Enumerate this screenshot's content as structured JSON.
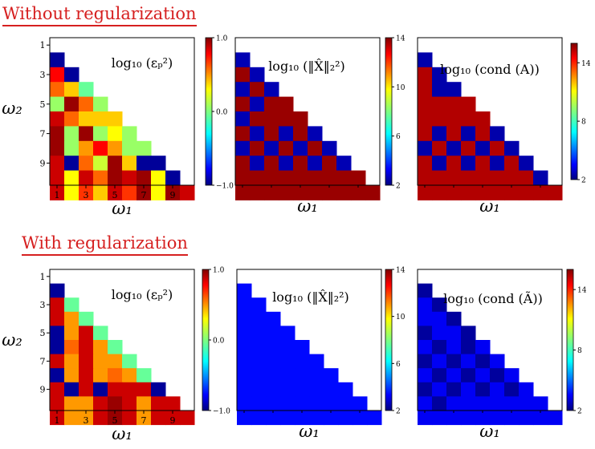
{
  "sections": [
    {
      "title": "Without regularization"
    },
    {
      "title": "With regularization"
    }
  ],
  "colormap": "jet",
  "chart_data": [
    {
      "type": "heatmap",
      "section": "Without regularization",
      "title": "log₁₀ (εₚ²)",
      "xlabel": "ω₁",
      "ylabel": "ω₂",
      "xticks": [
        "1",
        "3",
        "5",
        "7",
        "9"
      ],
      "yticks": [
        "1",
        "3",
        "5",
        "7",
        "9"
      ],
      "colorbar": {
        "min": -1.0,
        "max": 1.0,
        "ticks": [
          "−1.0",
          "0.0",
          "1.0"
        ]
      },
      "grid": [
        [],
        [
          -0.95
        ],
        [
          0.75,
          -0.95
        ],
        [
          0.55,
          0.35,
          -0.05
        ],
        [
          0.05,
          0.95,
          0.55,
          0.05
        ],
        [
          0.85,
          0.55,
          0.35,
          0.35,
          0.35
        ],
        [
          0.95,
          0.05,
          0.95,
          0.05,
          0.25,
          0.05
        ],
        [
          0.95,
          0.05,
          0.45,
          0.75,
          0.45,
          0.05,
          0.05
        ],
        [
          0.85,
          -0.95,
          0.55,
          0.15,
          0.95,
          0.35,
          -0.95,
          -0.95
        ],
        [
          0.85,
          0.25,
          0.85,
          0.55,
          0.95,
          0.85,
          0.95,
          0.25,
          -0.95
        ],
        [
          0.85,
          0.25,
          0.65,
          0.35,
          0.85,
          0.65,
          0.95,
          0.25,
          0.95,
          0.85
        ]
      ]
    },
    {
      "type": "heatmap",
      "section": "Without regularization",
      "title": "log₁₀ (‖X̂‖₂²)",
      "xlabel": "ω₁",
      "ylabel": "",
      "xticks": [],
      "yticks": [],
      "colorbar": {
        "min": 2,
        "max": 14,
        "ticks": [
          "2",
          "6",
          "10",
          "14"
        ]
      },
      "grid": [
        [],
        [
          2.6
        ],
        [
          13.7,
          2.6
        ],
        [
          2.6,
          13.7,
          2.6
        ],
        [
          13.7,
          2.6,
          13.7,
          13.7
        ],
        [
          2.6,
          13.7,
          13.7,
          13.7,
          13.7
        ],
        [
          13.7,
          2.6,
          13.7,
          2.6,
          13.7,
          2.6
        ],
        [
          2.6,
          13.7,
          2.6,
          13.7,
          2.6,
          13.7,
          2.6
        ],
        [
          13.7,
          2.6,
          13.7,
          2.6,
          13.7,
          2.6,
          13.7,
          2.6
        ],
        [
          13.7,
          13.7,
          13.7,
          13.7,
          13.7,
          13.7,
          13.7,
          13.7,
          13.7
        ],
        [
          13.7,
          13.7,
          13.7,
          13.7,
          13.7,
          13.7,
          13.7,
          13.7,
          13.7,
          13.7
        ]
      ]
    },
    {
      "type": "heatmap",
      "section": "Without regularization",
      "title": "log₁₀ (cond (A))",
      "xlabel": "ω₁",
      "ylabel": "",
      "xticks": [],
      "yticks": [],
      "colorbar": {
        "min": 2,
        "max": 16,
        "ticks": [
          "2",
          "8",
          "14"
        ]
      },
      "grid": [
        [],
        [
          2.6
        ],
        [
          15.3,
          2.6
        ],
        [
          15.3,
          2.6,
          2.6
        ],
        [
          15.3,
          15.3,
          15.3,
          15.3
        ],
        [
          15.3,
          15.3,
          15.3,
          15.3,
          15.3
        ],
        [
          15.3,
          2.6,
          15.3,
          2.6,
          15.3,
          2.6
        ],
        [
          2.6,
          15.3,
          2.6,
          15.3,
          2.6,
          15.3,
          2.6
        ],
        [
          15.3,
          2.6,
          15.3,
          2.6,
          15.3,
          2.6,
          15.3,
          2.6
        ],
        [
          15.3,
          15.3,
          15.3,
          15.3,
          15.3,
          15.3,
          15.3,
          15.3,
          2.6
        ],
        [
          15.3,
          15.3,
          15.3,
          15.3,
          15.3,
          15.3,
          15.3,
          15.3,
          15.3,
          15.3
        ]
      ]
    },
    {
      "type": "heatmap",
      "section": "With regularization",
      "title": "log₁₀ (εₚ²)",
      "xlabel": "ω₁",
      "ylabel": "ω₂",
      "xticks": [
        "1",
        "3",
        "5",
        "7",
        "9"
      ],
      "yticks": [
        "1",
        "3",
        "5",
        "7",
        "9"
      ],
      "colorbar": {
        "min": -1.0,
        "max": 1.0,
        "ticks": [
          "−1.0",
          "0.0",
          "1.0"
        ]
      },
      "grid": [
        [],
        [
          -0.95
        ],
        [
          0.85,
          -0.05
        ],
        [
          0.85,
          0.45,
          -0.05
        ],
        [
          -0.95,
          0.45,
          0.85,
          -0.05
        ],
        [
          -0.95,
          0.55,
          0.85,
          0.45,
          -0.05
        ],
        [
          0.85,
          0.45,
          0.85,
          0.45,
          0.45,
          -0.05
        ],
        [
          -0.95,
          0.45,
          0.85,
          0.45,
          0.55,
          0.45,
          -0.05
        ],
        [
          0.85,
          -0.95,
          0.85,
          -0.95,
          0.85,
          0.85,
          0.85,
          -0.95
        ],
        [
          0.85,
          0.45,
          0.45,
          0.85,
          0.95,
          0.85,
          0.45,
          0.85,
          0.85
        ],
        [
          0.85,
          0.45,
          0.45,
          0.85,
          0.95,
          0.85,
          0.45,
          0.85,
          0.85,
          0.85
        ]
      ]
    },
    {
      "type": "heatmap",
      "section": "With regularization",
      "title": "log₁₀ (‖X̂‖₂²)",
      "xlabel": "ω₁",
      "ylabel": "",
      "xticks": [],
      "yticks": [],
      "colorbar": {
        "min": 2,
        "max": 14,
        "ticks": [
          "2",
          "6",
          "10",
          "14"
        ]
      },
      "grid": [
        [],
        [
          3.6
        ],
        [
          3.6,
          3.6
        ],
        [
          3.6,
          3.6,
          3.6
        ],
        [
          3.6,
          3.6,
          3.6,
          3.6
        ],
        [
          3.6,
          3.6,
          3.6,
          3.6,
          3.6
        ],
        [
          3.6,
          3.6,
          3.6,
          3.6,
          3.6,
          3.6
        ],
        [
          3.6,
          3.6,
          3.6,
          3.6,
          3.6,
          3.6,
          3.6
        ],
        [
          3.6,
          3.6,
          3.6,
          3.6,
          3.6,
          3.6,
          3.6,
          3.6
        ],
        [
          3.6,
          3.6,
          3.6,
          3.6,
          3.6,
          3.6,
          3.6,
          3.6,
          3.6
        ],
        [
          3.6,
          3.6,
          3.6,
          3.6,
          3.6,
          3.6,
          3.6,
          3.6,
          3.6,
          3.6
        ]
      ]
    },
    {
      "type": "heatmap",
      "section": "With regularization",
      "title": "log₁₀ (cond (Ã))",
      "xlabel": "ω₁",
      "ylabel": "",
      "xticks": [],
      "yticks": [],
      "colorbar": {
        "min": 2,
        "max": 16,
        "ticks": [
          "2",
          "8",
          "14"
        ]
      },
      "grid": [
        [],
        [
          2.4
        ],
        [
          3.6,
          2.4
        ],
        [
          3.6,
          3.6,
          2.4
        ],
        [
          2.4,
          3.6,
          3.6,
          2.4
        ],
        [
          3.6,
          2.4,
          3.6,
          2.4,
          3.6
        ],
        [
          2.4,
          3.6,
          2.4,
          3.6,
          2.4,
          3.6
        ],
        [
          3.6,
          2.4,
          3.6,
          2.4,
          3.6,
          2.4,
          3.6
        ],
        [
          2.4,
          3.6,
          2.4,
          3.6,
          2.4,
          3.6,
          2.4,
          3.6
        ],
        [
          3.6,
          2.4,
          3.6,
          3.6,
          3.6,
          3.6,
          3.6,
          3.6,
          3.6
        ],
        [
          3.6,
          3.6,
          3.6,
          3.6,
          3.6,
          3.6,
          3.6,
          3.6,
          3.6,
          3.6
        ]
      ]
    }
  ]
}
